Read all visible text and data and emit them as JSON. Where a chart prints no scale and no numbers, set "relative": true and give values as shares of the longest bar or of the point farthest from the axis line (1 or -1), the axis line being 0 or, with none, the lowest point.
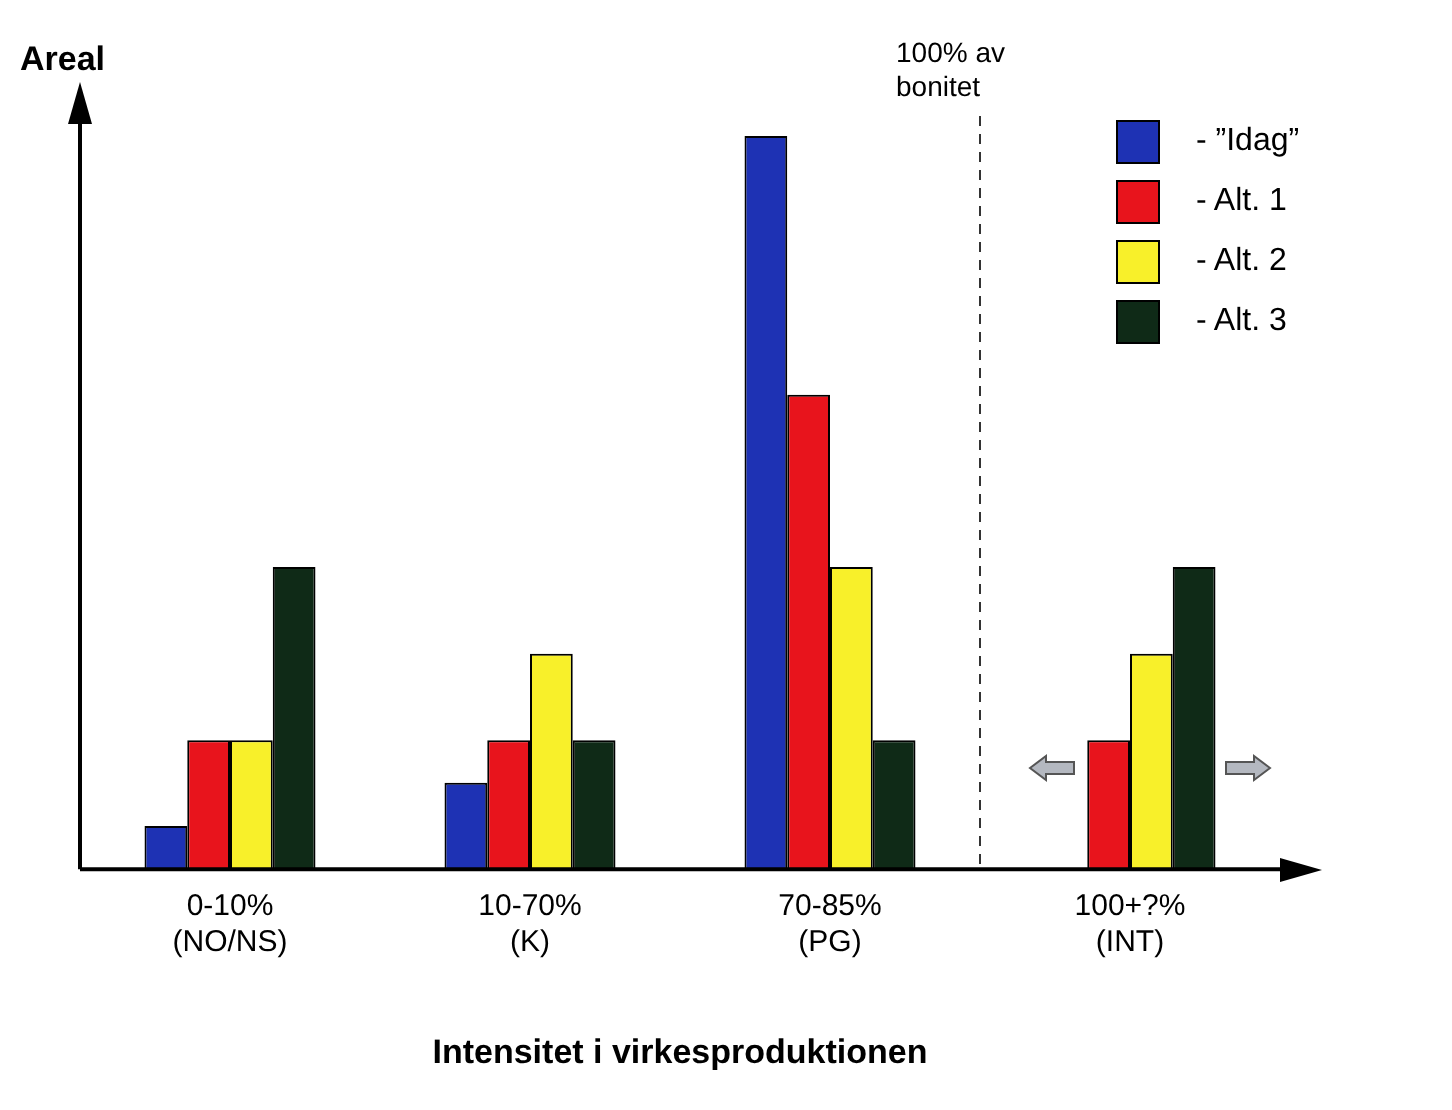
{
  "chart_data": {
    "type": "bar",
    "relative": true,
    "ylabel": "Areal",
    "xlabel": "Intensitet i virkesproduktionen",
    "categories": [
      "0-10%\n(NO/NS)",
      "10-70%\n(K)",
      "70-85%\n(PG)",
      "100+?%\n(INT)"
    ],
    "series": [
      {
        "name": "- ”Idag”",
        "color": "#1e32b4",
        "values": [
          0.059,
          0.118,
          1,
          null
        ]
      },
      {
        "name": "- Alt. 1",
        "color": "#e8141c",
        "values": [
          0.176,
          0.176,
          0.647,
          0.176
        ]
      },
      {
        "name": "- Alt. 2",
        "color": "#f8f02a",
        "values": [
          0.176,
          0.294,
          0.412,
          0.294
        ]
      },
      {
        "name": "- Alt. 3",
        "color": "#0f2a17",
        "values": [
          0.412,
          0.176,
          0.176,
          0.412
        ]
      }
    ],
    "annotations": [
      "100% av bonitet"
    ],
    "legend": "top right",
    "grid": false
  }
}
